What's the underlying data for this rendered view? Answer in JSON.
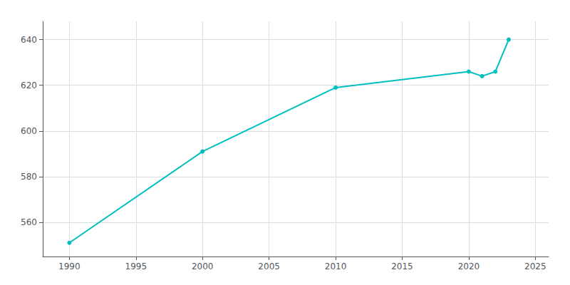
{
  "chart_data": {
    "type": "line",
    "x": [
      1990,
      2000,
      2010,
      2020,
      2021,
      2022,
      2023
    ],
    "values": [
      551,
      591,
      619,
      626,
      624,
      626,
      640
    ],
    "color": "#00BFBF",
    "marker": "circle",
    "xlim": [
      1988,
      2026
    ],
    "xticks": [
      1990,
      1995,
      2000,
      2005,
      2010,
      2015,
      2020,
      2025
    ],
    "ylim": [
      545,
      648
    ],
    "yticks": [
      560,
      580,
      600,
      620,
      640
    ],
    "grid": true
  }
}
